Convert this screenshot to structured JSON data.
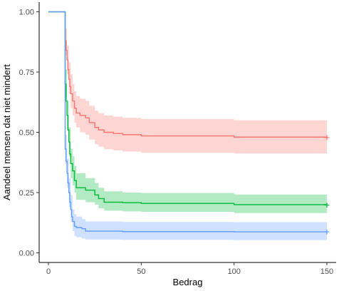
{
  "chart_data": {
    "type": "line",
    "subtype": "kaplan-meier step curves with confidence bands",
    "title": "",
    "xlabel": "Bedrag",
    "ylabel": "Aandeel mensen dat niet mindert",
    "xlim": [
      -5,
      155
    ],
    "ylim": [
      -0.04,
      1.04
    ],
    "x_ticks": [
      0,
      50,
      100,
      150
    ],
    "x_tick_labels": [
      "0",
      "50",
      "100",
      "150"
    ],
    "y_ticks": [
      0.0,
      0.25,
      0.5,
      0.75,
      1.0
    ],
    "y_tick_labels": [
      "0.00",
      "0.25",
      "0.50",
      "0.75",
      "1.00"
    ],
    "grid": false,
    "legend": "none",
    "series": [
      {
        "color": "#F8766D",
        "band_color": "#F8766D",
        "points": [
          [
            0,
            1.0
          ],
          [
            9,
            1.0
          ],
          [
            9,
            0.88
          ],
          [
            9.5,
            0.84
          ],
          [
            10,
            0.8
          ],
          [
            10.5,
            0.76
          ],
          [
            11,
            0.72
          ],
          [
            11.5,
            0.69
          ],
          [
            12,
            0.66
          ],
          [
            13,
            0.63
          ],
          [
            14,
            0.6
          ],
          [
            15,
            0.58
          ],
          [
            17,
            0.57
          ],
          [
            20,
            0.56
          ],
          [
            22,
            0.54
          ],
          [
            25,
            0.52
          ],
          [
            27,
            0.51
          ],
          [
            30,
            0.5
          ],
          [
            35,
            0.495
          ],
          [
            40,
            0.49
          ],
          [
            50,
            0.485
          ],
          [
            100,
            0.48
          ],
          [
            150,
            0.478
          ]
        ],
        "lower": [
          [
            9,
            0.82
          ],
          [
            10,
            0.74
          ],
          [
            11,
            0.66
          ],
          [
            12,
            0.6
          ],
          [
            13,
            0.57
          ],
          [
            14,
            0.54
          ],
          [
            15,
            0.52
          ],
          [
            17,
            0.5
          ],
          [
            20,
            0.49
          ],
          [
            22,
            0.47
          ],
          [
            25,
            0.45
          ],
          [
            27,
            0.44
          ],
          [
            30,
            0.43
          ],
          [
            35,
            0.425
          ],
          [
            40,
            0.42
          ],
          [
            50,
            0.415
          ],
          [
            100,
            0.412
          ],
          [
            150,
            0.41
          ]
        ],
        "upper": [
          [
            9,
            0.93
          ],
          [
            10,
            0.86
          ],
          [
            11,
            0.79
          ],
          [
            12,
            0.74
          ],
          [
            13,
            0.7
          ],
          [
            14,
            0.67
          ],
          [
            15,
            0.65
          ],
          [
            17,
            0.64
          ],
          [
            20,
            0.63
          ],
          [
            22,
            0.61
          ],
          [
            25,
            0.59
          ],
          [
            27,
            0.58
          ],
          [
            30,
            0.57
          ],
          [
            35,
            0.565
          ],
          [
            40,
            0.56
          ],
          [
            50,
            0.555
          ],
          [
            100,
            0.55
          ],
          [
            150,
            0.545
          ]
        ],
        "censor_x": [
          150
        ]
      },
      {
        "color": "#00BA38",
        "band_color": "#00BA38",
        "points": [
          [
            0,
            1.0
          ],
          [
            9,
            1.0
          ],
          [
            9,
            0.7
          ],
          [
            9.5,
            0.63
          ],
          [
            10,
            0.57
          ],
          [
            10.5,
            0.51
          ],
          [
            11,
            0.46
          ],
          [
            11.5,
            0.41
          ],
          [
            12,
            0.37
          ],
          [
            13,
            0.34
          ],
          [
            14,
            0.3
          ],
          [
            15,
            0.27
          ],
          [
            20,
            0.26
          ],
          [
            25,
            0.24
          ],
          [
            27,
            0.225
          ],
          [
            30,
            0.21
          ],
          [
            40,
            0.208
          ],
          [
            50,
            0.205
          ],
          [
            100,
            0.2
          ],
          [
            150,
            0.198
          ]
        ],
        "lower": [
          [
            9,
            0.64
          ],
          [
            10,
            0.51
          ],
          [
            11,
            0.4
          ],
          [
            12,
            0.31
          ],
          [
            13,
            0.28
          ],
          [
            14,
            0.25
          ],
          [
            15,
            0.22
          ],
          [
            20,
            0.21
          ],
          [
            25,
            0.2
          ],
          [
            27,
            0.185
          ],
          [
            30,
            0.175
          ],
          [
            40,
            0.172
          ],
          [
            50,
            0.17
          ],
          [
            100,
            0.165
          ],
          [
            150,
            0.163
          ]
        ],
        "upper": [
          [
            9,
            0.76
          ],
          [
            10,
            0.63
          ],
          [
            11,
            0.52
          ],
          [
            12,
            0.43
          ],
          [
            13,
            0.4
          ],
          [
            14,
            0.36
          ],
          [
            15,
            0.33
          ],
          [
            20,
            0.31
          ],
          [
            25,
            0.29
          ],
          [
            27,
            0.27
          ],
          [
            30,
            0.255
          ],
          [
            40,
            0.25
          ],
          [
            50,
            0.248
          ],
          [
            100,
            0.242
          ],
          [
            150,
            0.24
          ]
        ],
        "censor_x": [
          150
        ]
      },
      {
        "color": "#619CFF",
        "band_color": "#619CFF",
        "points": [
          [
            0,
            1.0
          ],
          [
            9,
            1.0
          ],
          [
            9,
            0.43
          ],
          [
            9.5,
            0.38
          ],
          [
            10,
            0.33
          ],
          [
            10.5,
            0.29
          ],
          [
            11,
            0.25
          ],
          [
            11.5,
            0.21
          ],
          [
            12,
            0.18
          ],
          [
            12.5,
            0.15
          ],
          [
            13,
            0.13
          ],
          [
            14,
            0.11
          ],
          [
            15,
            0.105
          ],
          [
            18,
            0.1
          ],
          [
            20,
            0.09
          ],
          [
            40,
            0.088
          ],
          [
            100,
            0.087
          ],
          [
            150,
            0.087
          ]
        ],
        "lower": [
          [
            9,
            0.37
          ],
          [
            10,
            0.27
          ],
          [
            11,
            0.19
          ],
          [
            12,
            0.13
          ],
          [
            13,
            0.09
          ],
          [
            14,
            0.07
          ],
          [
            15,
            0.065
          ],
          [
            18,
            0.06
          ],
          [
            20,
            0.055
          ],
          [
            40,
            0.054
          ],
          [
            100,
            0.053
          ],
          [
            150,
            0.053
          ]
        ],
        "upper": [
          [
            9,
            0.49
          ],
          [
            10,
            0.39
          ],
          [
            11,
            0.31
          ],
          [
            12,
            0.24
          ],
          [
            13,
            0.18
          ],
          [
            14,
            0.16
          ],
          [
            15,
            0.15
          ],
          [
            18,
            0.14
          ],
          [
            20,
            0.13
          ],
          [
            40,
            0.128
          ],
          [
            100,
            0.127
          ],
          [
            150,
            0.127
          ]
        ],
        "censor_x": [
          150
        ]
      }
    ]
  }
}
